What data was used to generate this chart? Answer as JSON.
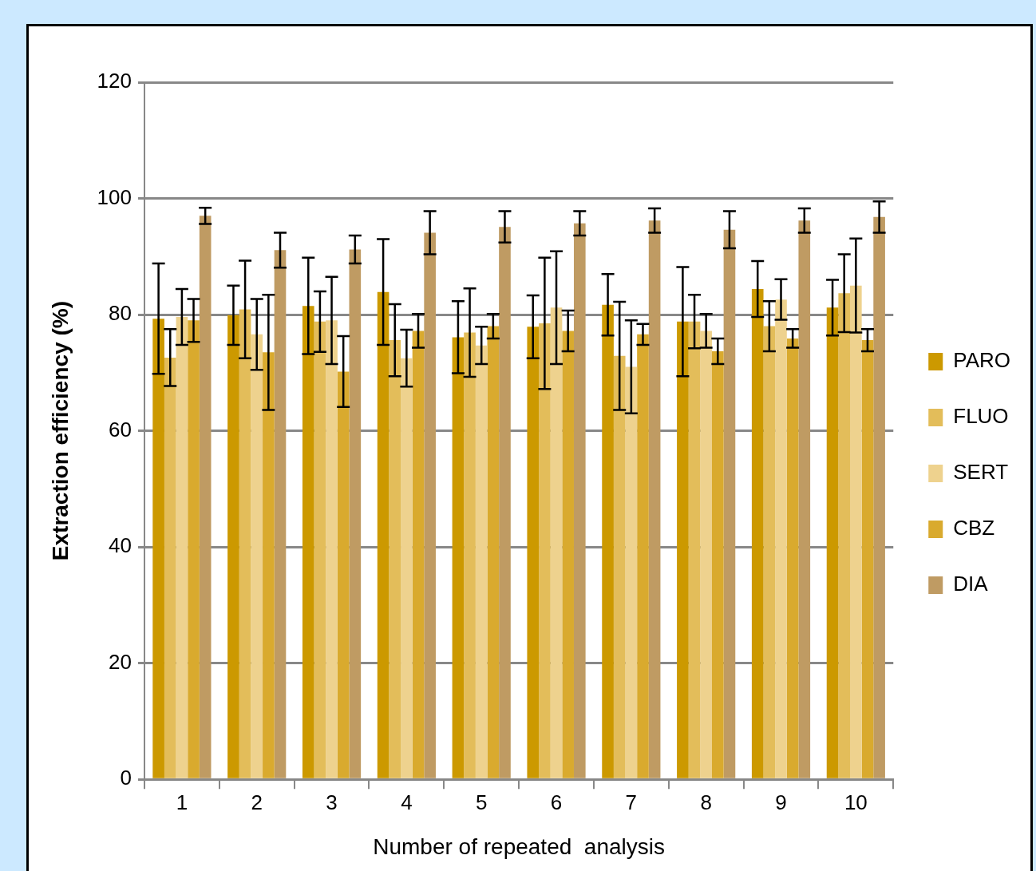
{
  "chart_data": {
    "type": "bar",
    "xlabel": "Number of repeated  analysis",
    "ylabel": "Extraction efficiency (%)",
    "categories": [
      "1",
      "2",
      "3",
      "4",
      "5",
      "6",
      "7",
      "8",
      "9",
      "10"
    ],
    "series": [
      {
        "name": "PARO",
        "color": "#cc9900",
        "values": [
          79.3,
          79.9,
          81.5,
          83.9,
          76.1,
          77.9,
          81.7,
          78.8,
          84.4,
          81.2
        ],
        "errors": [
          9.5,
          5.1,
          8.3,
          9.1,
          6.2,
          5.4,
          5.3,
          9.4,
          4.8,
          4.8
        ]
      },
      {
        "name": "FLUO",
        "color": "#e3bd5a",
        "values": [
          72.6,
          80.9,
          78.8,
          75.6,
          76.9,
          78.5,
          72.9,
          78.8,
          78,
          83.7
        ],
        "errors": [
          4.9,
          8.4,
          5.2,
          6.2,
          7.6,
          11.3,
          9.3,
          4.6,
          4.3,
          6.7
        ]
      },
      {
        "name": "SERT",
        "color": "#eed28e",
        "values": [
          79.6,
          76.6,
          79,
          72.5,
          74.7,
          81.2,
          71,
          77.2,
          82.6,
          85
        ],
        "errors": [
          4.8,
          6.1,
          7.5,
          4.9,
          3.2,
          9.7,
          8,
          2.9,
          3.5,
          8.1
        ]
      },
      {
        "name": "CBZ",
        "color": "#d9aa2e",
        "values": [
          79,
          73.5,
          70.2,
          77.2,
          78,
          77.2,
          76.6,
          73.7,
          75.9,
          75.6
        ],
        "errors": [
          3.7,
          9.9,
          6.1,
          2.9,
          2.1,
          3.5,
          1.8,
          2.2,
          1.6,
          1.9
        ]
      },
      {
        "name": "DIA",
        "color": "#bf9b63",
        "values": [
          97,
          91.1,
          91.2,
          94.1,
          95.1,
          95.7,
          96.2,
          94.6,
          96.2,
          96.8
        ],
        "errors": [
          1.4,
          3,
          2.4,
          3.7,
          2.7,
          2.1,
          2.1,
          3.2,
          2.1,
          2.7
        ]
      }
    ],
    "ylim": [
      0,
      120
    ],
    "yticks": [
      0,
      20,
      40,
      60,
      80,
      100,
      120
    ],
    "grid": "y",
    "legend": "right"
  }
}
